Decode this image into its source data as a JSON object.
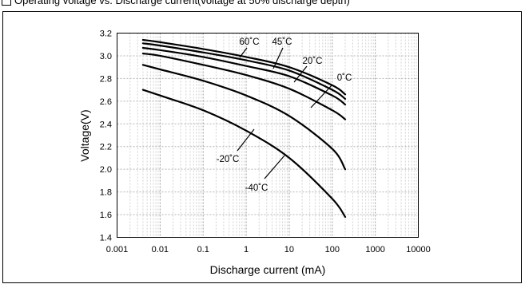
{
  "header": {
    "title": "Operating voltage vs. Discharge current(voltage at 50% discharge depth)"
  },
  "chart_data": {
    "type": "line",
    "title": "Operating voltage vs. Discharge current(voltage at 50% discharge depth)",
    "xlabel": "Discharge current (mA)",
    "ylabel": "Voltage(V)",
    "xscale": "log",
    "xlim": [
      0.001,
      10000
    ],
    "ylim": [
      1.4,
      3.2
    ],
    "xticks": [
      "0.001",
      "0.01",
      "0.1",
      "1",
      "10",
      "100",
      "1000",
      "10000"
    ],
    "yticks": [
      "1.4",
      "1.6",
      "1.8",
      "2.0",
      "2.2",
      "2.4",
      "2.6",
      "2.8",
      "3.0",
      "3.2"
    ],
    "grid": true,
    "series": [
      {
        "name": "60˚C",
        "x": [
          0.004,
          0.01,
          0.1,
          1,
          10,
          100,
          200
        ],
        "y": [
          3.14,
          3.12,
          3.06,
          2.99,
          2.9,
          2.74,
          2.66
        ]
      },
      {
        "name": "45˚C",
        "x": [
          0.004,
          0.01,
          0.1,
          1,
          10,
          100,
          200
        ],
        "y": [
          3.11,
          3.09,
          3.03,
          2.96,
          2.87,
          2.7,
          2.62
        ]
      },
      {
        "name": "20˚C",
        "x": [
          0.004,
          0.01,
          0.1,
          1,
          10,
          100,
          200
        ],
        "y": [
          3.07,
          3.05,
          2.99,
          2.91,
          2.82,
          2.65,
          2.57
        ]
      },
      {
        "name": "0˚C",
        "x": [
          0.004,
          0.01,
          0.1,
          1,
          10,
          100,
          200
        ],
        "y": [
          3.02,
          3.0,
          2.92,
          2.83,
          2.71,
          2.52,
          2.44
        ]
      },
      {
        "name": "-20˚C",
        "x": [
          0.004,
          0.01,
          0.1,
          1,
          10,
          100,
          200
        ],
        "y": [
          2.92,
          2.88,
          2.78,
          2.65,
          2.47,
          2.18,
          2.0
        ]
      },
      {
        "name": "-40˚C",
        "x": [
          0.004,
          0.01,
          0.1,
          1,
          10,
          100,
          200
        ],
        "y": [
          2.7,
          2.65,
          2.52,
          2.34,
          2.1,
          1.74,
          1.58
        ]
      }
    ]
  }
}
